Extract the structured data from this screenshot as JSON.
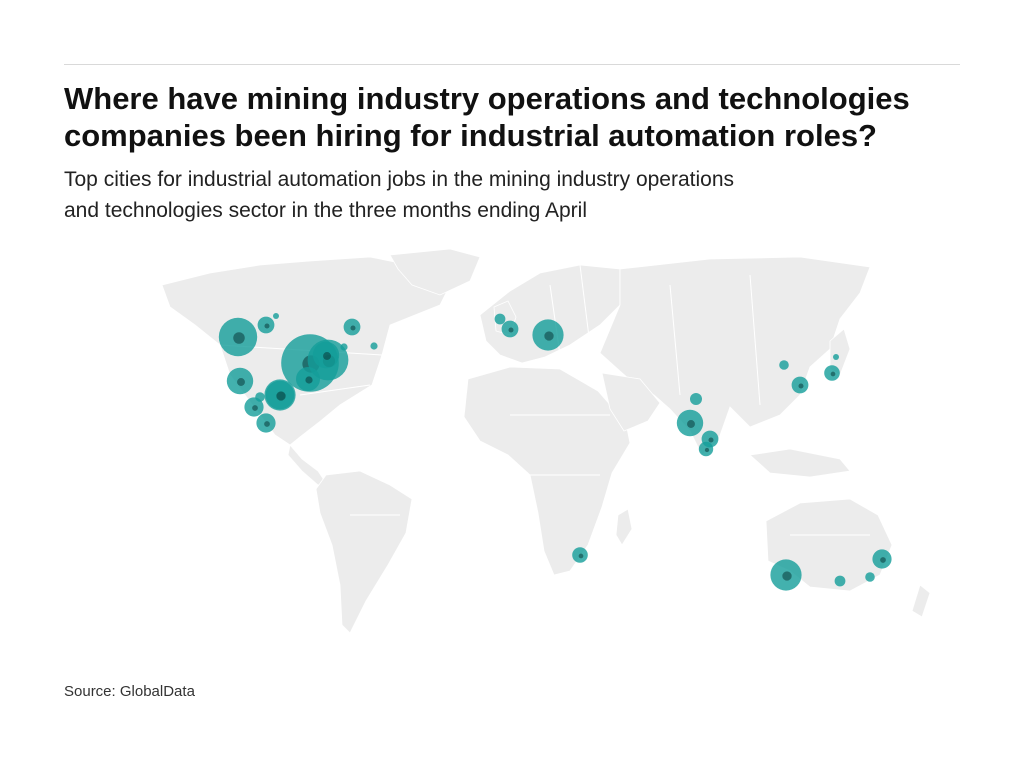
{
  "header": {
    "title_line1": "Where have mining industry operations and technologies",
    "title_line2": "companies been hiring for industrial automation roles?",
    "subtitle_line1": "Top cities for industrial automation jobs in the mining industry operations",
    "subtitle_line2": "and technologies sector in the three months ending April"
  },
  "footer": {
    "source": "Source: GlobalData"
  },
  "colors": {
    "land": "#ececec",
    "border": "#ffffff",
    "bubble": "#149e9a",
    "bubble_dark": "#0a3a3a"
  },
  "map_data": {
    "type": "bubble-map",
    "bubbles": [
      {
        "region": "Canada - Alberta",
        "size": 3.2
      },
      {
        "region": "Canada - British Columbia coast",
        "size": 1.4
      },
      {
        "region": "Canada - British Columbia north",
        "size": 0.4
      },
      {
        "region": "Canada - Quebec",
        "size": 1.4
      },
      {
        "region": "Canada - Newfoundland",
        "size": 0.6
      },
      {
        "region": "USA - Great Lakes / Northeast",
        "size": 4.8
      },
      {
        "region": "USA - Ohio",
        "size": 3.4
      },
      {
        "region": "USA - Michigan",
        "size": 2.2
      },
      {
        "region": "USA - Pennsylvania",
        "size": 2.0
      },
      {
        "region": "USA - Northeast coast",
        "size": 0.6
      },
      {
        "region": "USA - Tennessee",
        "size": 2.4
      },
      {
        "region": "USA - Texas",
        "size": 2.6
      },
      {
        "region": "USA - Pacific Northwest",
        "size": 2.2
      },
      {
        "region": "USA - California",
        "size": 1.6
      },
      {
        "region": "USA - Southwest",
        "size": 0.8
      },
      {
        "region": "USA - Gulf coast",
        "size": 1.6
      },
      {
        "region": "UK - Scotland",
        "size": 0.9
      },
      {
        "region": "UK - England",
        "size": 1.4
      },
      {
        "region": "Germany / Central Europe",
        "size": 2.6
      },
      {
        "region": "India - Gujarat / Mumbai",
        "size": 2.2
      },
      {
        "region": "India - Northwest",
        "size": 1.0
      },
      {
        "region": "India - Hyderabad",
        "size": 1.4
      },
      {
        "region": "India - South",
        "size": 1.2
      },
      {
        "region": "China - Beijing",
        "size": 0.8
      },
      {
        "region": "China - Shanghai",
        "size": 1.4
      },
      {
        "region": "Japan - Tokyo",
        "size": 1.3
      },
      {
        "region": "Japan - North",
        "size": 0.4
      },
      {
        "region": "South Africa - Johannesburg",
        "size": 1.3
      },
      {
        "region": "Australia - Perth",
        "size": 2.6
      },
      {
        "region": "Australia - Adelaide",
        "size": 0.9
      },
      {
        "region": "Australia - Melbourne",
        "size": 0.8
      },
      {
        "region": "Australia - Sydney / Brisbane",
        "size": 1.6
      }
    ]
  }
}
